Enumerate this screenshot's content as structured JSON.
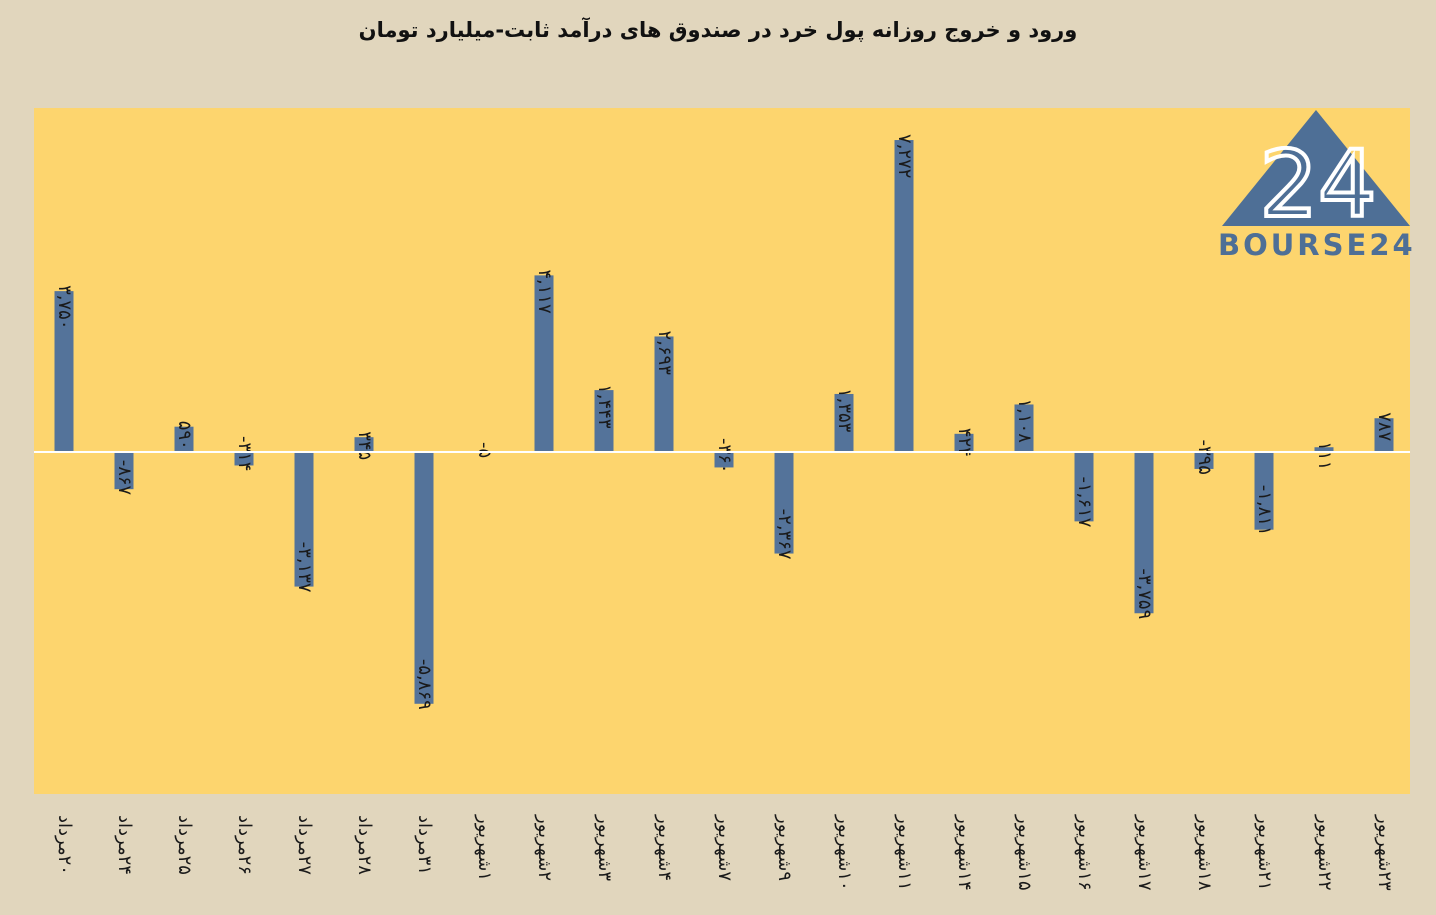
{
  "chart_data": {
    "type": "bar",
    "title": "ورود و خروج روزانه پول خرد در صندوق های درآمد ثابت-میلیارد تومان",
    "categories": [
      "۲۰مرداد",
      "۲۴مرداد",
      "۲۵مرداد",
      "۲۶مرداد",
      "۲۷مرداد",
      "۲۸مرداد",
      "۳۱مرداد",
      "۱شهریور",
      "۲شهریور",
      "۳شهریور",
      "۴شهریور",
      "۷شهریور",
      "۹شهریور",
      "۱۰شهریور",
      "۱۱شهریور",
      "۱۴شهریور",
      "۱۵شهریور",
      "۱۶شهریور",
      "۱۷شهریور",
      "۱۸شهریور",
      "۲۱شهریور",
      "۲۲شهریور",
      "۲۳شهریور"
    ],
    "values": [
      3750,
      -867,
      590,
      -314,
      -3137,
      345,
      -5869,
      -5,
      4117,
      1443,
      2693,
      -360,
      -2367,
      1353,
      7272,
      424,
      1108,
      -1617,
      -3759,
      -395,
      -1811,
      111,
      787
    ],
    "value_labels": [
      "۳,۷۵۰",
      "-۸۶۷",
      "۵۹۰",
      "-۳۱۴",
      "-۳,۱۳۷",
      "۳۴۵",
      "-۵,۸۶۹",
      "-۵",
      "۴,۱۱۷",
      "۱,۴۴۳",
      "۲,۶۹۳",
      "-۳۶۰",
      "-۲,۳۶۷",
      "۱,۳۵۳",
      "۷,۲۷۲",
      "۴۲۴",
      "۱,۱۰۸",
      "-۱,۶۱۷",
      "-۳,۷۵۹",
      "-۳۹۵",
      "-۱,۸۱۱",
      "۱۱۱",
      "۷۸۷"
    ],
    "ylim": [
      -8000,
      8000
    ],
    "grid": false,
    "colors": {
      "bar": "#54739a",
      "plot_bg": "#fdd56e",
      "page_bg": "#e1d6bd",
      "zero_line": "#ffffff"
    }
  },
  "logo": {
    "text": "BOURSE24",
    "mark": "24",
    "icon": "triangle-logo-icon",
    "color": "#4e6f96"
  }
}
